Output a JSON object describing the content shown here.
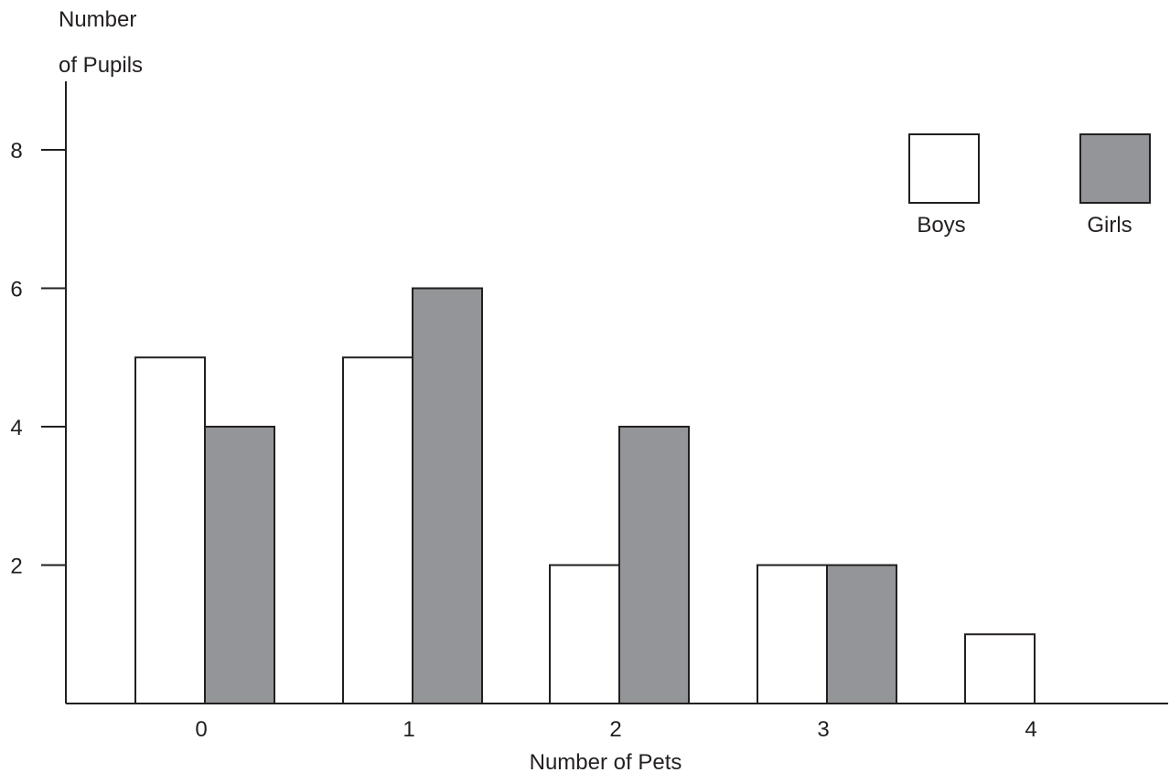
{
  "chart_data": {
    "type": "bar",
    "xlabel": "Number of Pets",
    "ylabel_line1": "Number",
    "ylabel_line2": "of Pupils",
    "categories": [
      "0",
      "1",
      "2",
      "3",
      "4"
    ],
    "series": [
      {
        "name": "Boys",
        "values": [
          5,
          5,
          2,
          2,
          1
        ],
        "color": "#ffffff"
      },
      {
        "name": "Girls",
        "values": [
          4,
          6,
          4,
          2,
          0
        ],
        "color": "#939598"
      }
    ],
    "yticks": [
      2,
      4,
      6,
      8
    ],
    "ylim": [
      0,
      9
    ],
    "grid": false,
    "legend_position": "top-right"
  }
}
